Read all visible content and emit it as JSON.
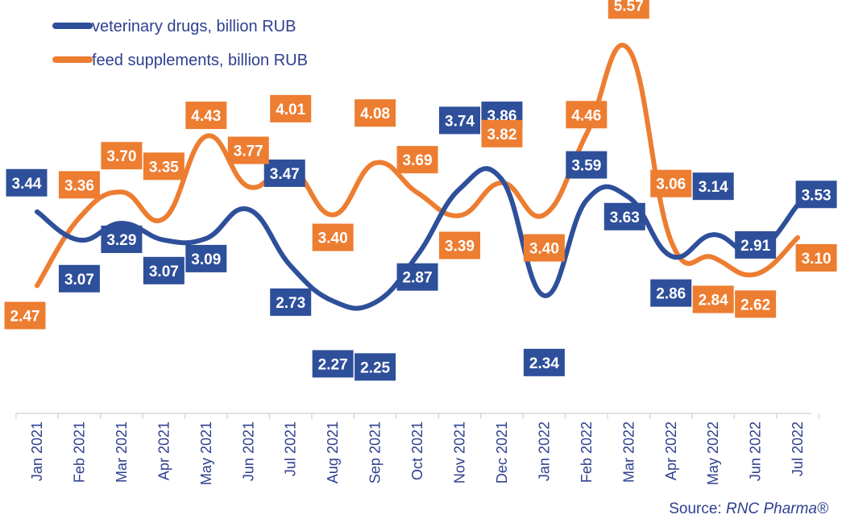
{
  "chart_data": {
    "type": "line",
    "categories": [
      "Jan 2021",
      "Feb 2021",
      "Mar 2021",
      "Apr 2021",
      "May 2021",
      "Jun 2021",
      "Jul 2021",
      "Aug 2021",
      "Sep 2021",
      "Oct 2021",
      "Nov 2021",
      "Dec 2021",
      "Jan 2022",
      "Feb 2022",
      "Mar 2022",
      "Apr 2022",
      "May 2022",
      "Jun 2022",
      "Jul 2022"
    ],
    "series": [
      {
        "name": "veterinary drugs, billion RUB",
        "color": "#2e4f9a",
        "values": [
          3.44,
          3.07,
          3.29,
          3.07,
          3.09,
          3.47,
          2.73,
          2.27,
          2.25,
          2.87,
          3.74,
          3.86,
          2.34,
          3.59,
          3.63,
          2.86,
          3.14,
          2.91,
          3.53
        ],
        "labels": [
          "3.44",
          "3.07",
          "3.29",
          "3.07",
          "3.09",
          "3.47",
          "2.73",
          "2.27",
          "2.25",
          "2.87",
          "3.74",
          "3.86",
          "2.34",
          "3.59",
          "3.63",
          "2.86",
          "3.14",
          "2.91",
          "3.53"
        ]
      },
      {
        "name": "feed supplements, billion RUB",
        "color": "#ed7d31",
        "values": [
          2.47,
          3.36,
          3.7,
          3.35,
          4.43,
          3.77,
          4.01,
          3.4,
          4.08,
          3.69,
          3.39,
          3.82,
          3.4,
          4.46,
          5.57,
          3.06,
          2.84,
          2.62,
          3.1
        ],
        "labels": [
          "2.47",
          "3.36",
          "3.70",
          "3.35",
          "4.43",
          "3.77",
          "4.01",
          "3.40",
          "4.08",
          "3.69",
          "3.39",
          "3.82",
          "3.40",
          "4.46",
          "5.57",
          "3.06",
          "2.84",
          "2.62",
          "3.10"
        ]
      }
    ],
    "legend_position": "top-left",
    "grid": false
  },
  "source": {
    "prefix": "Source: ",
    "name": "RNC Pharma®"
  }
}
